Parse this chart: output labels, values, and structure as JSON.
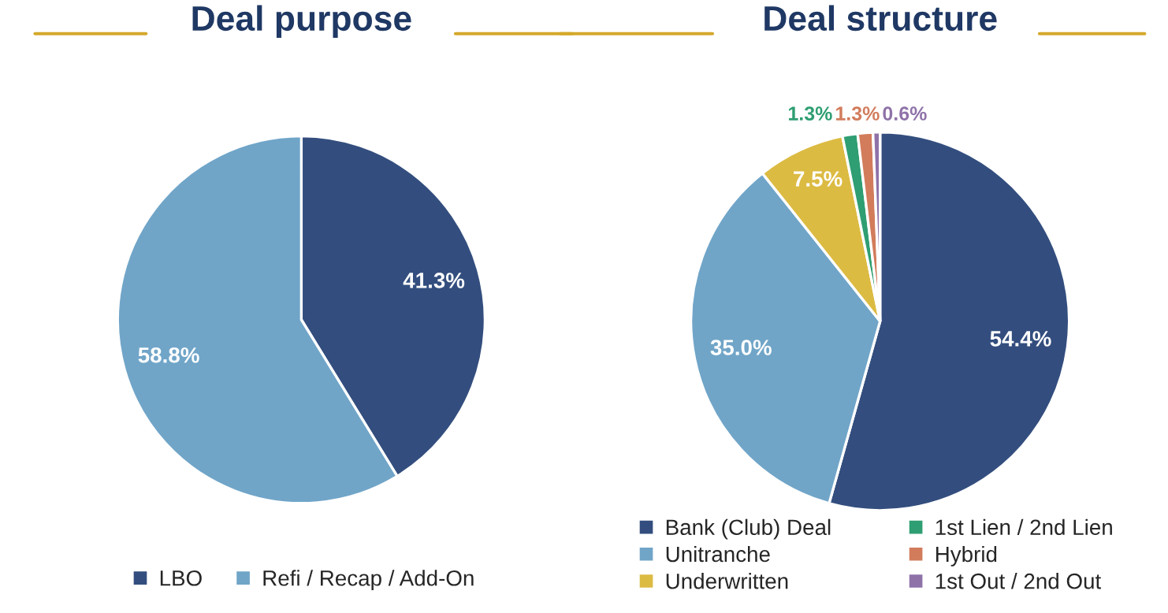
{
  "chart_data": [
    {
      "type": "pie",
      "title": "Deal purpose",
      "categories": [
        "LBO",
        "Refi / Recap / Add-On"
      ],
      "values": [
        41.3,
        58.8
      ],
      "colors": [
        "#334e7e",
        "#70a5c8"
      ],
      "value_labels": [
        "41.3%",
        "58.8%"
      ],
      "legend": "bottom"
    },
    {
      "type": "pie",
      "title": "Deal structure",
      "categories": [
        "Bank (Club) Deal",
        "Unitranche",
        "Underwritten",
        "1st Lien / 2nd Lien",
        "Hybrid",
        "1st Out / 2nd Out"
      ],
      "values": [
        54.4,
        35.0,
        7.5,
        1.3,
        1.3,
        0.6
      ],
      "colors": [
        "#334e7e",
        "#70a5c8",
        "#dcbb43",
        "#2f9e72",
        "#d27c5c",
        "#8e72a8"
      ],
      "value_labels": [
        "54.4%",
        "35.0%",
        "7.5%",
        "1.3%",
        "1.3%",
        "0.6%"
      ],
      "legend": "bottom"
    }
  ]
}
